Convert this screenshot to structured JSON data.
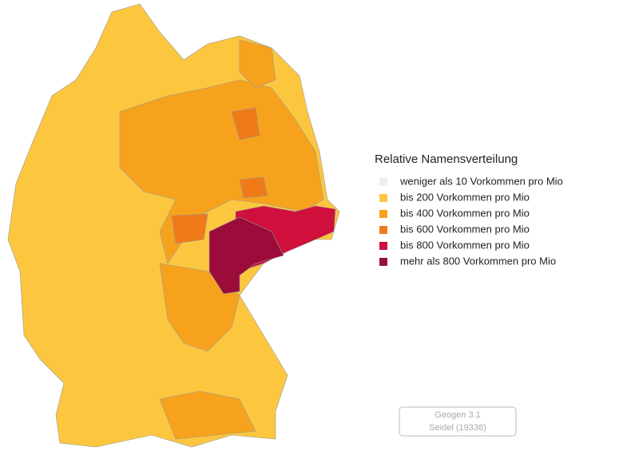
{
  "legend": {
    "title": "Relative Namensverteilung",
    "items": [
      {
        "label": "weniger als 10 Vorkommen pro Mio",
        "color": "#eeeeee"
      },
      {
        "label": "bis 200 Vorkommen pro Mio",
        "color": "#fcc63f"
      },
      {
        "label": "bis 400 Vorkommen pro Mio",
        "color": "#f7a21c"
      },
      {
        "label": "bis 600 Vorkommen pro Mio",
        "color": "#f07a18"
      },
      {
        "label": "bis 800 Vorkommen pro Mio",
        "color": "#cf0f3c"
      },
      {
        "label": "mehr als 800 Vorkommen pro Mio",
        "color": "#9b0c3a"
      }
    ]
  },
  "footer": {
    "lines": [
      "Geogen 3.1",
      "Seidel (19338)"
    ]
  }
}
